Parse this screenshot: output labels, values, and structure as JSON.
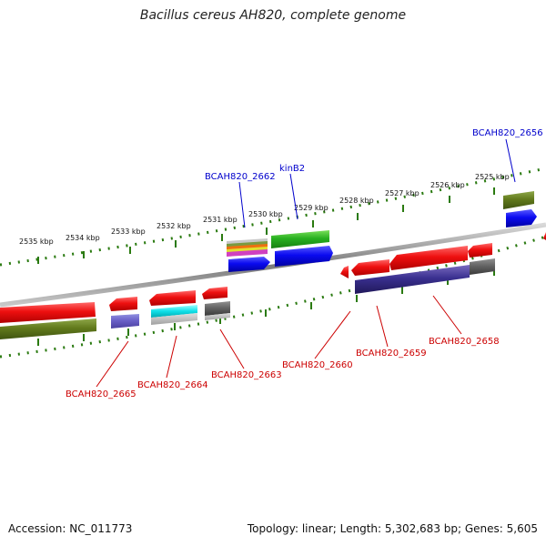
{
  "title": "Bacillus cereus AH820, complete genome",
  "footer": {
    "accession": "Accession: NC_011773",
    "summary": "Topology: linear; Length: 5,302,683 bp; Genes: 5,605"
  },
  "colors": {
    "forward_label": "#0000cc",
    "reverse_label": "#cc0000",
    "tick": "#2a7a10",
    "backbone": "#8a8a8a"
  },
  "ticks": [
    {
      "label": "2535 kbp"
    },
    {
      "label": "2534 kbp"
    },
    {
      "label": "2533 kbp"
    },
    {
      "label": "2532 kbp"
    },
    {
      "label": "2531 kbp"
    },
    {
      "label": "2530 kbp"
    },
    {
      "label": "2529 kbp"
    },
    {
      "label": "2528 kbp"
    },
    {
      "label": "2527 kbp"
    },
    {
      "label": "2526 kbp"
    },
    {
      "label": "2525 kbp"
    }
  ],
  "labels_forward": [
    {
      "text": "BCAH820_2662"
    },
    {
      "text": "kinB2"
    },
    {
      "text": "BCAH820_2656"
    }
  ],
  "labels_reverse": [
    {
      "text": "BCAH820_2665"
    },
    {
      "text": "BCAH820_2664"
    },
    {
      "text": "BCAH820_2663"
    },
    {
      "text": "BCAH820_2660"
    },
    {
      "text": "BCAH820_2659"
    },
    {
      "text": "BCAH820_2658"
    }
  ]
}
